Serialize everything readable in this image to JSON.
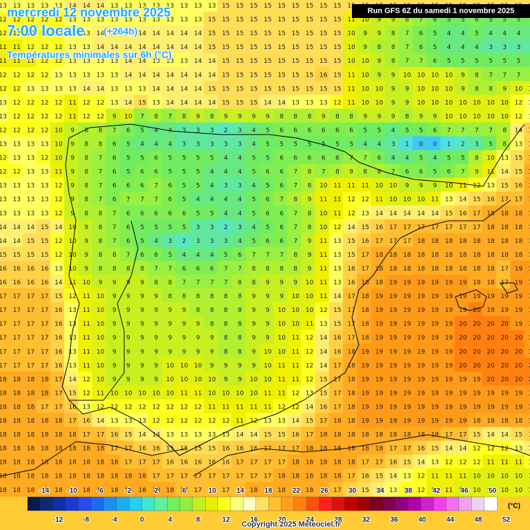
{
  "header": {
    "date": "mercredi 12 novembre 2025",
    "time": "7:00 locale",
    "lead": "(+264h)",
    "parameter": "Températures minimales sur 6h (°C)"
  },
  "run_info": "Run GFS 6Z du samedi 1 novembre 2025",
  "copyright": "Copyright 2025 Meteociel.fr",
  "legend": {
    "unit": "(°C)",
    "top_labels": [
      "-14",
      "-10",
      "-6",
      "-2",
      "2",
      "6",
      "10",
      "14",
      "18",
      "22",
      "26",
      "30",
      "34",
      "38",
      "42",
      "46",
      "50"
    ],
    "bottom_labels": [
      "-12",
      "-8",
      "-4",
      "0",
      "4",
      "8",
      "12",
      "16",
      "20",
      "24",
      "28",
      "32",
      "36",
      "40",
      "44",
      "48",
      "52"
    ],
    "colors": [
      "#0a1a4a",
      "#0c2a7a",
      "#1030a8",
      "#1a3ad2",
      "#2a4af0",
      "#1a6af5",
      "#1a90f0",
      "#1ab0f0",
      "#20d0f0",
      "#40e8d0",
      "#60f0a0",
      "#70f060",
      "#90f040",
      "#c0f020",
      "#e8f000",
      "#ffff20",
      "#ffff80",
      "#ffffc0",
      "#ffe060",
      "#ffc030",
      "#ffa020",
      "#ff8010",
      "#ff5010",
      "#ff2020",
      "#e01010",
      "#c00000",
      "#a00000",
      "#800020",
      "#800050",
      "#900080",
      "#b000b0",
      "#d020d0",
      "#f040f0",
      "#f070f0",
      "#f0a0f0",
      "#f0d0f0",
      "#ffffff"
    ]
  },
  "grid_values": [
    [
      13,
      13,
      13,
      13,
      13,
      14,
      14,
      14,
      13,
      13,
      13,
      13,
      13,
      13,
      13,
      13,
      15,
      15,
      15,
      15,
      15,
      15,
      15,
      15,
      15,
      15,
      15,
      15,
      15,
      15,
      15,
      15,
      15,
      15,
      15,
      15,
      15,
      15,
      15,
      15
    ],
    [
      12,
      12,
      12,
      12,
      12,
      13,
      13,
      13,
      13,
      13,
      13,
      13,
      13,
      13,
      13,
      15,
      15,
      15,
      15,
      15,
      15,
      15,
      15,
      15,
      15,
      11,
      10,
      9,
      9,
      8,
      7,
      6,
      5,
      5,
      6,
      5,
      5,
      5,
      5,
      5
    ],
    [
      12,
      12,
      12,
      12,
      12,
      13,
      13,
      14,
      14,
      14,
      14,
      14,
      14,
      14,
      14,
      15,
      15,
      15,
      15,
      15,
      15,
      15,
      15,
      15,
      15,
      10,
      9,
      9,
      8,
      7,
      6,
      5,
      4,
      4,
      5,
      4,
      4,
      4,
      4,
      4
    ],
    [
      11,
      11,
      12,
      12,
      12,
      13,
      13,
      14,
      14,
      14,
      14,
      14,
      14,
      14,
      14,
      15,
      15,
      15,
      15,
      15,
      15,
      15,
      15,
      15,
      15,
      10,
      9,
      8,
      8,
      7,
      6,
      5,
      4,
      4,
      4,
      3,
      3,
      3,
      3,
      3
    ],
    [
      11,
      11,
      11,
      12,
      12,
      13,
      13,
      13,
      13,
      14,
      14,
      13,
      13,
      13,
      14,
      14,
      15,
      15,
      15,
      15,
      15,
      15,
      15,
      15,
      15,
      10,
      10,
      9,
      8,
      7,
      7,
      6,
      5,
      5,
      5,
      5,
      5,
      5,
      5,
      5
    ],
    [
      12,
      12,
      12,
      12,
      13,
      13,
      13,
      13,
      13,
      14,
      14,
      14,
      14,
      14,
      14,
      14,
      15,
      15,
      15,
      15,
      15,
      15,
      15,
      16,
      15,
      11,
      10,
      9,
      9,
      10,
      10,
      10,
      10,
      9,
      8,
      7,
      7,
      7,
      7,
      7
    ],
    [
      12,
      12,
      13,
      13,
      13,
      13,
      14,
      14,
      13,
      13,
      13,
      14,
      14,
      14,
      14,
      15,
      15,
      15,
      15,
      15,
      15,
      15,
      15,
      15,
      15,
      11,
      10,
      10,
      9,
      9,
      10,
      10,
      10,
      9,
      8,
      8,
      9,
      10,
      10,
      10
    ],
    [
      13,
      12,
      12,
      12,
      12,
      11,
      12,
      12,
      13,
      14,
      15,
      13,
      14,
      14,
      14,
      14,
      15,
      15,
      15,
      14,
      14,
      13,
      13,
      13,
      12,
      11,
      10,
      10,
      9,
      9,
      10,
      10,
      10,
      10,
      10,
      10,
      10,
      12,
      13,
      13
    ],
    [
      13,
      12,
      12,
      12,
      12,
      11,
      12,
      12,
      9,
      10,
      7,
      8,
      7,
      8,
      9,
      8,
      9,
      9,
      9,
      9,
      8,
      8,
      8,
      9,
      8,
      8,
      9,
      9,
      9,
      8,
      9,
      9,
      10,
      10,
      10,
      10,
      10,
      12,
      13,
      13
    ],
    [
      12,
      12,
      12,
      12,
      10,
      9,
      8,
      8,
      7,
      6,
      5,
      4,
      4,
      3,
      3,
      3,
      2,
      3,
      4,
      5,
      6,
      6,
      6,
      6,
      6,
      6,
      5,
      5,
      4,
      5,
      5,
      6,
      7,
      7,
      7,
      7,
      8,
      14,
      16,
      16
    ],
    [
      13,
      13,
      13,
      13,
      10,
      9,
      8,
      8,
      6,
      5,
      4,
      4,
      4,
      3,
      3,
      3,
      3,
      3,
      4,
      5,
      5,
      5,
      5,
      5,
      5,
      5,
      4,
      4,
      3,
      1,
      0,
      0,
      1,
      2,
      3,
      5,
      8,
      13,
      16,
      16
    ],
    [
      12,
      13,
      13,
      12,
      10,
      9,
      8,
      7,
      6,
      5,
      5,
      6,
      5,
      5,
      5,
      5,
      4,
      4,
      5,
      5,
      6,
      6,
      6,
      6,
      6,
      7,
      7,
      6,
      4,
      4,
      5,
      4,
      5,
      5,
      8,
      10,
      13,
      15,
      17,
      17
    ],
    [
      12,
      12,
      13,
      13,
      11,
      9,
      8,
      7,
      6,
      5,
      6,
      6,
      5,
      5,
      5,
      4,
      4,
      4,
      5,
      6,
      6,
      7,
      8,
      7,
      8,
      9,
      8,
      8,
      7,
      6,
      6,
      5,
      6,
      7,
      9,
      11,
      14,
      15,
      18,
      18
    ],
    [
      13,
      13,
      13,
      13,
      12,
      9,
      8,
      7,
      6,
      6,
      6,
      7,
      6,
      5,
      5,
      4,
      3,
      3,
      4,
      5,
      6,
      7,
      8,
      10,
      11,
      11,
      11,
      10,
      10,
      9,
      9,
      9,
      10,
      11,
      12,
      13,
      15,
      16,
      18,
      18
    ],
    [
      13,
      13,
      13,
      13,
      12,
      9,
      8,
      7,
      6,
      7,
      7,
      7,
      6,
      5,
      4,
      4,
      4,
      4,
      5,
      6,
      7,
      8,
      9,
      11,
      11,
      12,
      12,
      11,
      10,
      10,
      10,
      11,
      13,
      14,
      15,
      16,
      17,
      17,
      18,
      18
    ],
    [
      13,
      13,
      13,
      13,
      12,
      9,
      8,
      8,
      7,
      6,
      6,
      6,
      6,
      6,
      5,
      5,
      4,
      4,
      5,
      6,
      6,
      7,
      8,
      10,
      11,
      12,
      13,
      14,
      14,
      14,
      14,
      14,
      15,
      16,
      17,
      18,
      18,
      18,
      18,
      18
    ],
    [
      14,
      14,
      14,
      15,
      14,
      10,
      9,
      8,
      7,
      6,
      5,
      5,
      5,
      5,
      3,
      3,
      2,
      3,
      4,
      5,
      6,
      7,
      8,
      10,
      12,
      14,
      15,
      16,
      17,
      17,
      17,
      17,
      17,
      17,
      17,
      18,
      18,
      18,
      18,
      18
    ],
    [
      14,
      14,
      15,
      15,
      12,
      10,
      9,
      8,
      7,
      6,
      5,
      4,
      3,
      2,
      3,
      3,
      3,
      4,
      5,
      6,
      6,
      7,
      9,
      11,
      13,
      15,
      16,
      17,
      17,
      17,
      18,
      18,
      18,
      18,
      18,
      18,
      18,
      18,
      18,
      18
    ],
    [
      15,
      15,
      15,
      15,
      12,
      10,
      9,
      8,
      8,
      7,
      6,
      6,
      5,
      4,
      4,
      4,
      5,
      6,
      7,
      7,
      7,
      8,
      9,
      11,
      13,
      15,
      17,
      18,
      18,
      18,
      18,
      18,
      18,
      18,
      18,
      18,
      18,
      18,
      18,
      18
    ],
    [
      16,
      16,
      16,
      16,
      13,
      10,
      9,
      8,
      8,
      8,
      8,
      7,
      7,
      6,
      6,
      6,
      7,
      7,
      8,
      8,
      8,
      8,
      9,
      11,
      13,
      16,
      17,
      18,
      18,
      18,
      18,
      18,
      18,
      18,
      18,
      18,
      17,
      19,
      19,
      19
    ],
    [
      16,
      16,
      16,
      16,
      14,
      11,
      10,
      9,
      9,
      9,
      9,
      8,
      8,
      7,
      7,
      7,
      7,
      8,
      8,
      9,
      9,
      9,
      10,
      11,
      13,
      16,
      18,
      18,
      19,
      19,
      19,
      19,
      19,
      19,
      18,
      18,
      17,
      19,
      19,
      19
    ],
    [
      17,
      17,
      17,
      17,
      15,
      12,
      11,
      10,
      9,
      9,
      9,
      9,
      8,
      8,
      8,
      8,
      8,
      8,
      9,
      9,
      9,
      10,
      10,
      11,
      14,
      17,
      18,
      19,
      19,
      19,
      19,
      19,
      19,
      19,
      19,
      19,
      19,
      19,
      19,
      19
    ],
    [
      17,
      17,
      17,
      17,
      16,
      13,
      11,
      10,
      9,
      9,
      9,
      9,
      9,
      9,
      8,
      8,
      8,
      8,
      9,
      9,
      10,
      10,
      10,
      12,
      15,
      17,
      18,
      19,
      19,
      19,
      19,
      19,
      19,
      19,
      20,
      19,
      19,
      19,
      19,
      19
    ],
    [
      17,
      17,
      17,
      17,
      16,
      13,
      11,
      10,
      9,
      9,
      9,
      9,
      9,
      9,
      9,
      8,
      8,
      8,
      9,
      9,
      10,
      10,
      11,
      13,
      15,
      17,
      18,
      19,
      19,
      19,
      19,
      19,
      19,
      20,
      20,
      20,
      20,
      19,
      19,
      19
    ],
    [
      17,
      17,
      17,
      17,
      16,
      13,
      11,
      10,
      9,
      9,
      9,
      9,
      9,
      9,
      9,
      9,
      8,
      8,
      9,
      9,
      10,
      11,
      12,
      14,
      16,
      17,
      18,
      19,
      19,
      19,
      19,
      19,
      19,
      20,
      20,
      20,
      20,
      20,
      19,
      19
    ],
    [
      17,
      17,
      17,
      17,
      16,
      13,
      11,
      10,
      9,
      9,
      9,
      9,
      9,
      9,
      9,
      9,
      8,
      8,
      9,
      10,
      10,
      11,
      12,
      14,
      16,
      18,
      19,
      19,
      19,
      19,
      19,
      19,
      19,
      20,
      20,
      20,
      20,
      20,
      19,
      19
    ],
    [
      17,
      17,
      17,
      17,
      16,
      13,
      11,
      10,
      9,
      9,
      9,
      9,
      10,
      10,
      10,
      9,
      9,
      9,
      9,
      10,
      11,
      11,
      12,
      14,
      17,
      18,
      19,
      19,
      19,
      19,
      19,
      19,
      19,
      20,
      20,
      20,
      20,
      20,
      20,
      20
    ],
    [
      18,
      18,
      18,
      18,
      17,
      14,
      12,
      10,
      9,
      9,
      9,
      9,
      10,
      10,
      10,
      10,
      9,
      9,
      10,
      10,
      11,
      11,
      12,
      15,
      17,
      18,
      19,
      19,
      19,
      19,
      19,
      19,
      19,
      19,
      19,
      20,
      20,
      20,
      20,
      20
    ],
    [
      18,
      18,
      18,
      18,
      17,
      15,
      12,
      11,
      10,
      10,
      10,
      10,
      10,
      11,
      11,
      10,
      10,
      10,
      10,
      11,
      11,
      12,
      13,
      15,
      17,
      18,
      19,
      19,
      19,
      19,
      19,
      19,
      19,
      19,
      19,
      19,
      19,
      19,
      19,
      19
    ],
    [
      18,
      18,
      18,
      17,
      17,
      16,
      13,
      12,
      12,
      12,
      12,
      12,
      12,
      12,
      12,
      11,
      11,
      11,
      11,
      11,
      12,
      12,
      14,
      16,
      17,
      18,
      19,
      19,
      19,
      19,
      19,
      19,
      19,
      19,
      19,
      19,
      19,
      19,
      19,
      19
    ],
    [
      18,
      18,
      18,
      18,
      18,
      17,
      16,
      14,
      13,
      13,
      13,
      12,
      12,
      12,
      12,
      12,
      12,
      11,
      12,
      13,
      13,
      14,
      15,
      17,
      18,
      18,
      19,
      19,
      19,
      19,
      19,
      19,
      19,
      19,
      18,
      18,
      18,
      18,
      18,
      18
    ],
    [
      18,
      18,
      18,
      18,
      18,
      18,
      17,
      17,
      16,
      15,
      14,
      14,
      13,
      13,
      13,
      13,
      13,
      14,
      14,
      15,
      15,
      16,
      17,
      18,
      18,
      18,
      18,
      18,
      18,
      18,
      18,
      18,
      17,
      17,
      15,
      14,
      14,
      15,
      16,
      17
    ],
    [
      18,
      18,
      18,
      18,
      18,
      18,
      18,
      18,
      17,
      17,
      16,
      16,
      15,
      15,
      15,
      15,
      16,
      16,
      16,
      17,
      17,
      17,
      18,
      18,
      18,
      18,
      18,
      18,
      17,
      17,
      16,
      15,
      14,
      14,
      12,
      12,
      12,
      13,
      14,
      15
    ],
    [
      18,
      18,
      18,
      18,
      18,
      18,
      18,
      18,
      18,
      17,
      17,
      17,
      16,
      16,
      16,
      16,
      16,
      17,
      17,
      17,
      17,
      18,
      18,
      18,
      18,
      18,
      17,
      17,
      16,
      15,
      14,
      13,
      12,
      12,
      12,
      11,
      11,
      11,
      12,
      12
    ],
    [
      18,
      18,
      18,
      18,
      18,
      18,
      18,
      18,
      18,
      18,
      18,
      17,
      17,
      17,
      17,
      17,
      17,
      17,
      17,
      17,
      18,
      18,
      18,
      18,
      18,
      17,
      16,
      15,
      14,
      13,
      12,
      11,
      11,
      11,
      10,
      10,
      10,
      10,
      10,
      10
    ],
    [
      18,
      18,
      18,
      18,
      18,
      18,
      18,
      18,
      18,
      18,
      18,
      18,
      18,
      17,
      17,
      17,
      17,
      17,
      18,
      18,
      18,
      18,
      18,
      18,
      17,
      16,
      15,
      14,
      13,
      12,
      12,
      11,
      11,
      10,
      10,
      10,
      10,
      10,
      10,
      10
    ]
  ]
}
